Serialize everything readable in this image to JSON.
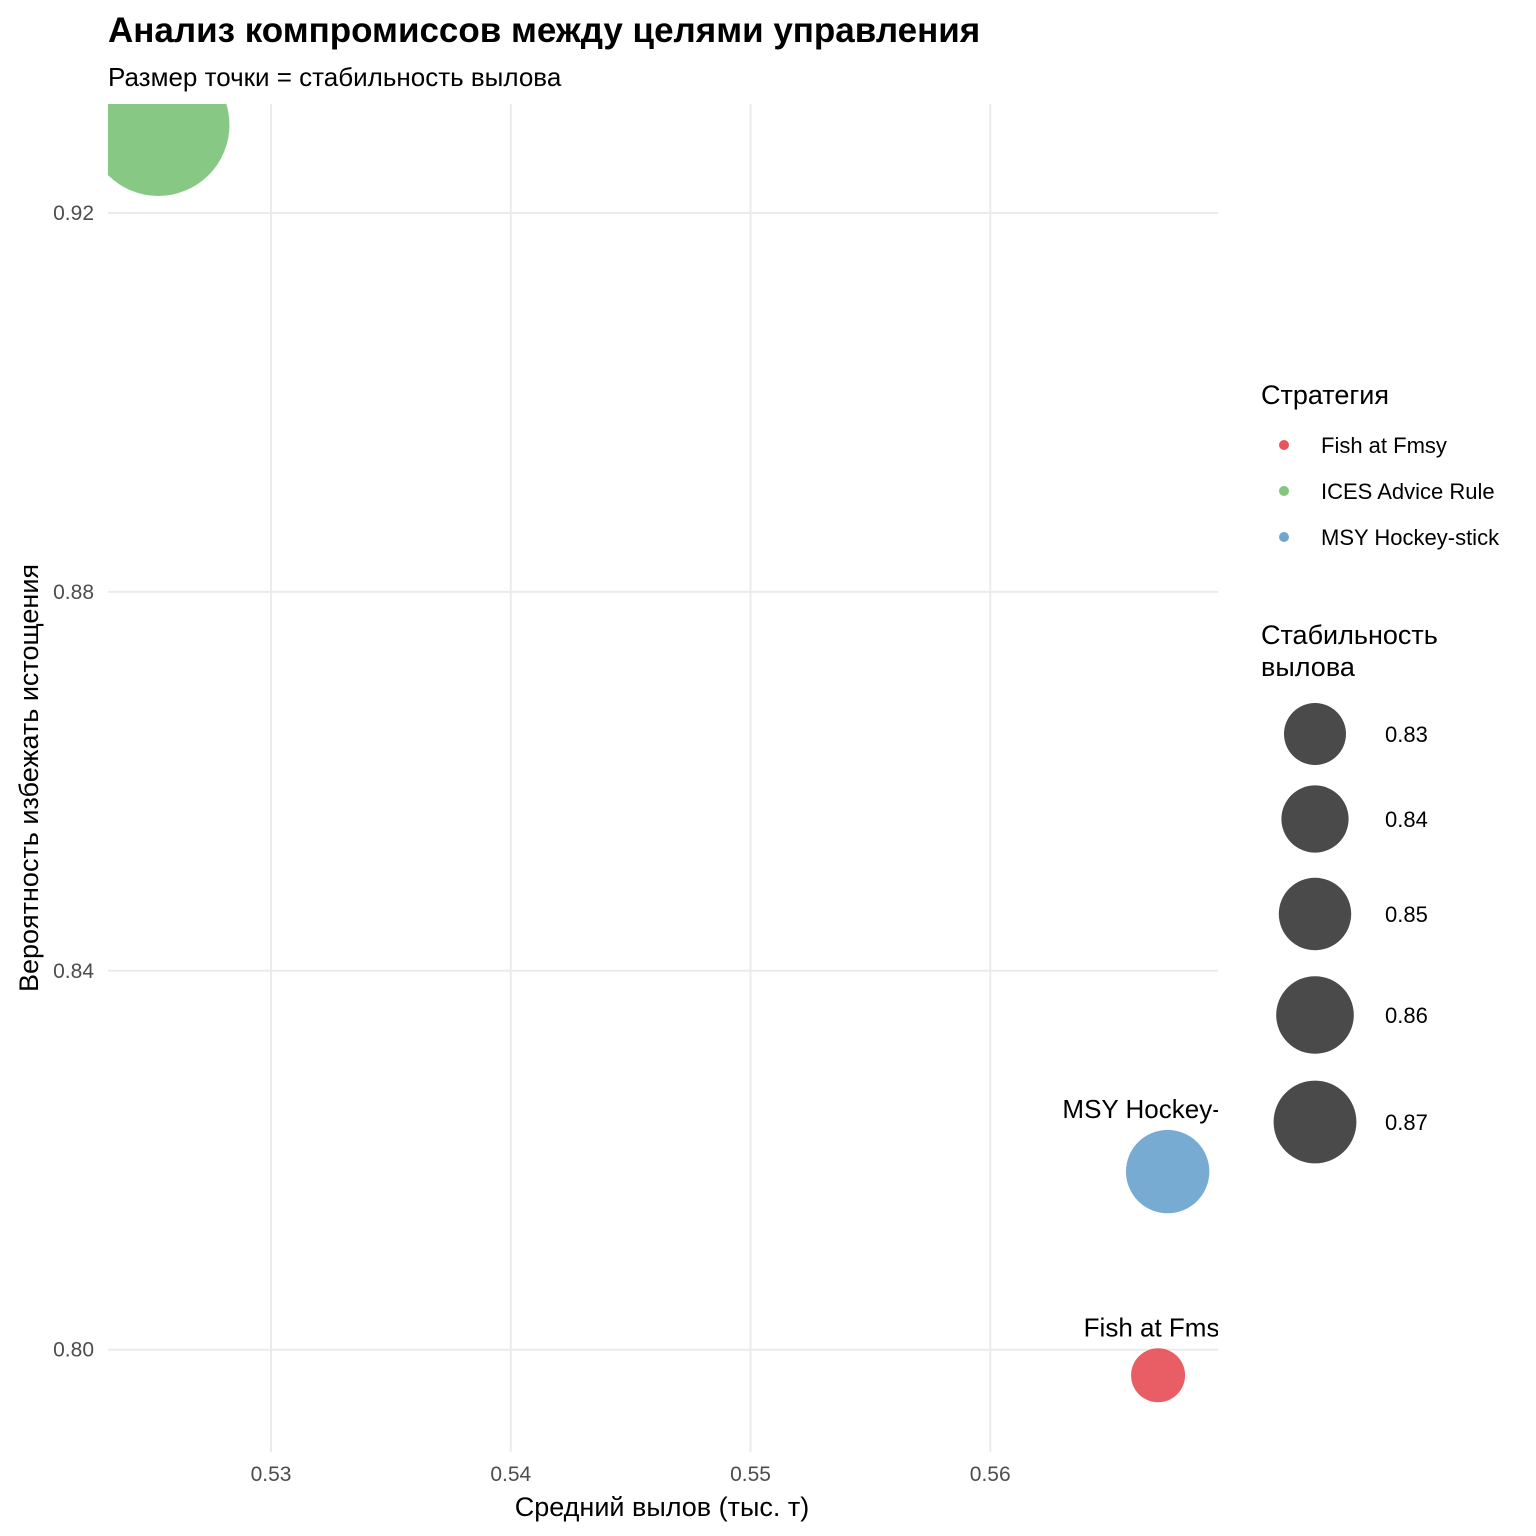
{
  "chart_data": {
    "type": "scatter",
    "title": "Анализ компромиссов между целями управления",
    "subtitle": "Размер точки = стабильность вылова",
    "xlabel": "Средний вылов (тыс. т)",
    "ylabel": "Вероятность избежать истощения",
    "x_ticks": [
      0.53,
      0.54,
      0.55,
      0.56
    ],
    "y_ticks": [
      0.8,
      0.84,
      0.88,
      0.92
    ],
    "x_tick_labels": [
      "0.53",
      "0.54",
      "0.55",
      "0.56"
    ],
    "y_tick_labels": [
      "0.80",
      "0.84",
      "0.88",
      "0.92"
    ],
    "xlim": [
      0.5232,
      0.5695
    ],
    "ylim": [
      0.7892,
      0.9315
    ],
    "grid": true,
    "legend_position": "right",
    "points": [
      {
        "name": "ICES Advice Rule",
        "x": 0.5253,
        "y": 0.9293,
        "stability": 0.87,
        "color": "#82c57e"
      },
      {
        "name": "MSY Hockey-stick",
        "x": 0.5674,
        "y": 0.8188,
        "stability": 0.842,
        "color": "#70a6d0"
      },
      {
        "name": "Fish at Fmsy",
        "x": 0.567,
        "y": 0.7973,
        "stability": 0.828,
        "color": "#e8555d"
      }
    ],
    "legend_color": {
      "title": "Стратегия",
      "items": [
        {
          "label": "Fish at Fmsy",
          "color": "#e8555d"
        },
        {
          "label": "ICES Advice Rule",
          "color": "#82c57e"
        },
        {
          "label": "MSY Hockey-stick",
          "color": "#70a6d0"
        }
      ]
    },
    "legend_size": {
      "title_line1": "Стабильность",
      "title_line2": "вылова",
      "items": [
        {
          "label": "0.83",
          "value": 0.83
        },
        {
          "label": "0.84",
          "value": 0.84
        },
        {
          "label": "0.85",
          "value": 0.85
        },
        {
          "label": "0.86",
          "value": 0.86
        },
        {
          "label": "0.87",
          "value": 0.87
        }
      ],
      "key_color": "#4a4a4a"
    }
  }
}
